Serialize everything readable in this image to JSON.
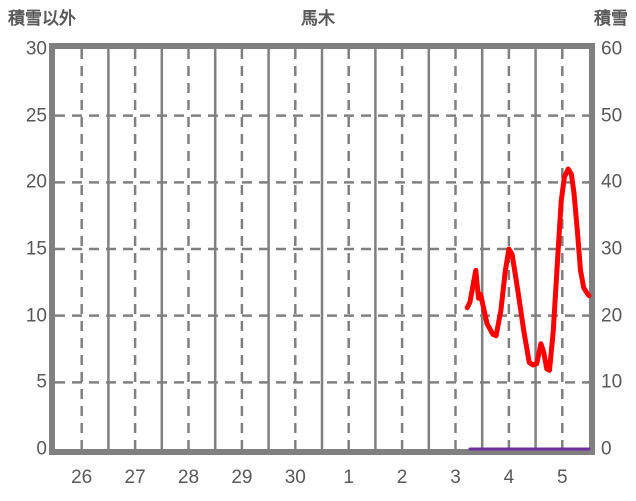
{
  "header": {
    "left_axis_title": "積雪以外",
    "chart_title": "馬木",
    "right_axis_title": "積雪"
  },
  "colors": {
    "grid": "#808080",
    "border": "#808080",
    "tick_text": "#595959",
    "red_series": "#ff0000",
    "purple_series": "#7030a0",
    "background": "#ffffff"
  },
  "chart_data": {
    "type": "line",
    "title": "馬木",
    "x_tick_labels": [
      "26",
      "27",
      "28",
      "29",
      "30",
      "1",
      "2",
      "3",
      "4",
      "5"
    ],
    "x_range": [
      0,
      10
    ],
    "left_axis": {
      "label": "積雪以外",
      "range": [
        0,
        30
      ],
      "ticks": [
        0,
        5,
        10,
        15,
        20,
        25,
        30
      ]
    },
    "right_axis": {
      "label": "積雪",
      "range": [
        0,
        60
      ],
      "ticks": [
        0,
        10,
        20,
        30,
        40,
        50,
        60
      ]
    },
    "grid": {
      "solid_vertical_at_days": [
        1,
        2,
        3,
        4,
        5,
        6,
        7,
        8,
        9
      ],
      "dashed_vertical_at_days": [
        0.5,
        1.5,
        2.5,
        3.5,
        4.5,
        5.5,
        6.5,
        7.5,
        8.5,
        9.5
      ],
      "dashed_horizontal_at_left_values": [
        5,
        10,
        15,
        20,
        25
      ]
    },
    "series": [
      {
        "name": "red-line",
        "color": "#ff0000",
        "axis": "left",
        "stroke_width": 5,
        "points": [
          [
            7.72,
            10.6
          ],
          [
            7.77,
            11.0
          ],
          [
            7.83,
            12.3
          ],
          [
            7.88,
            13.4
          ],
          [
            7.93,
            11.3
          ],
          [
            7.97,
            11.6
          ],
          [
            8.09,
            9.4
          ],
          [
            8.2,
            8.6
          ],
          [
            8.26,
            8.5
          ],
          [
            8.35,
            10.4
          ],
          [
            8.43,
            13.3
          ],
          [
            8.5,
            15.0
          ],
          [
            8.56,
            14.6
          ],
          [
            8.67,
            11.8
          ],
          [
            8.78,
            8.8
          ],
          [
            8.88,
            6.5
          ],
          [
            8.95,
            6.3
          ],
          [
            9.02,
            6.4
          ],
          [
            9.1,
            7.9
          ],
          [
            9.15,
            7.3
          ],
          [
            9.21,
            6.0
          ],
          [
            9.26,
            5.9
          ],
          [
            9.33,
            8.8
          ],
          [
            9.41,
            14.1
          ],
          [
            9.48,
            18.6
          ],
          [
            9.54,
            20.4
          ],
          [
            9.61,
            21.0
          ],
          [
            9.67,
            20.6
          ],
          [
            9.72,
            19.2
          ],
          [
            9.78,
            16.4
          ],
          [
            9.84,
            13.4
          ],
          [
            9.9,
            12.1
          ],
          [
            9.96,
            11.7
          ],
          [
            10.0,
            11.5
          ]
        ]
      },
      {
        "name": "purple-line",
        "color": "#7030a0",
        "axis": "left",
        "stroke_width": 3,
        "points": [
          [
            7.77,
            0
          ],
          [
            10.0,
            0
          ]
        ]
      }
    ]
  }
}
